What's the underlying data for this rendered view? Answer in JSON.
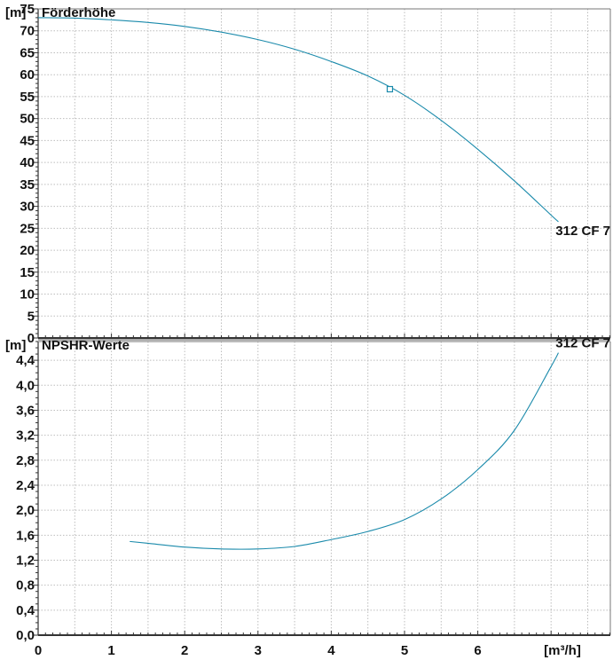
{
  "chart_data": [
    {
      "type": "line",
      "title": "Förderhöhe",
      "y_unit": "[m]",
      "x_unit": "[m³/h]",
      "xlim": [
        0,
        8
      ],
      "ylim": [
        0,
        75
      ],
      "grid": true,
      "x_ticks": [
        0,
        1,
        2,
        3,
        4,
        5,
        6
      ],
      "y_ticks": [
        0,
        5,
        10,
        15,
        20,
        25,
        30,
        35,
        40,
        45,
        50,
        55,
        60,
        65,
        70,
        75
      ],
      "series": [
        {
          "name": "312 CF 7",
          "color": "#1a8aab",
          "x": [
            0,
            0.5,
            1,
            1.5,
            2,
            2.5,
            3,
            3.5,
            4,
            4.5,
            5,
            5.5,
            6,
            6.5,
            7,
            7.1
          ],
          "y": [
            73,
            72.9,
            72.5,
            71.9,
            71,
            69.7,
            68,
            65.8,
            63,
            59.7,
            55.3,
            49.6,
            43,
            35.8,
            28,
            26.5
          ]
        }
      ],
      "marker": {
        "x": 4.8,
        "y": 56.7,
        "shape": "square"
      }
    },
    {
      "type": "line",
      "title": "NPSHR-Werte",
      "y_unit": "[m]",
      "x_unit": "[m³/h]",
      "xlim": [
        0,
        8
      ],
      "ylim": [
        0,
        4.7
      ],
      "grid": true,
      "x_ticks": [
        0,
        1,
        2,
        3,
        4,
        5,
        6
      ],
      "x_tick_labels": [
        "0",
        "1",
        "2",
        "3",
        "4",
        "5",
        "6"
      ],
      "y_ticks": [
        0,
        0.4,
        0.8,
        1.2,
        1.6,
        2.0,
        2.4,
        2.8,
        3.2,
        3.6,
        4.0,
        4.4
      ],
      "y_tick_labels": [
        "0,0",
        "0,4",
        "0,8",
        "1,2",
        "1,6",
        "2,0",
        "2,4",
        "2,8",
        "3,2",
        "3,6",
        "4,0",
        "4,4"
      ],
      "series": [
        {
          "name": "312 CF 7",
          "color": "#1a8aab",
          "x": [
            1.25,
            1.5,
            2,
            2.5,
            3,
            3.5,
            4,
            4.5,
            5,
            5.5,
            6,
            6.5,
            7,
            7.1
          ],
          "y": [
            1.5,
            1.47,
            1.41,
            1.38,
            1.38,
            1.42,
            1.53,
            1.66,
            1.85,
            2.18,
            2.65,
            3.28,
            4.3,
            4.52
          ]
        }
      ]
    }
  ]
}
